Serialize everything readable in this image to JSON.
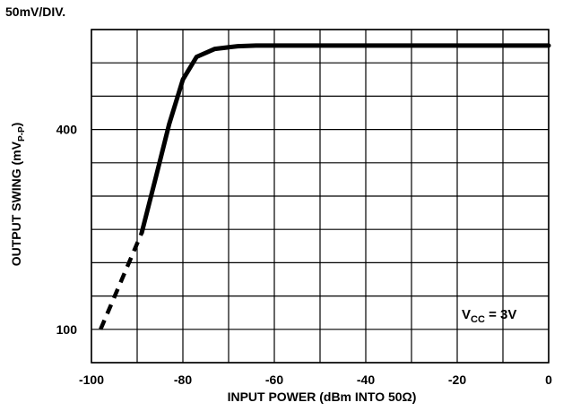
{
  "chart_data": {
    "type": "line",
    "scale_note": "50mV/DIV.",
    "xlabel": "INPUT POWER (dBm INTO 50Ω)",
    "ylabel": {
      "main": "OUTPUT SWING (mV",
      "sub": "P-P",
      "close": ")"
    },
    "xlim": [
      -100,
      0
    ],
    "ylim": [
      50,
      550
    ],
    "x_ticks": [
      -100,
      -80,
      -60,
      -40,
      -20,
      0
    ],
    "y_tick_labels": [
      {
        "value": 100,
        "label": "100"
      },
      {
        "value": 400,
        "label": "400"
      }
    ],
    "grid": true,
    "series": [
      {
        "style": "solid",
        "points": [
          [
            -89,
            245
          ],
          [
            -86,
            326
          ],
          [
            -83,
            408
          ],
          [
            -80,
            475
          ],
          [
            -77,
            509
          ],
          [
            -73,
            521
          ],
          [
            -68,
            525
          ],
          [
            -64,
            526
          ],
          [
            -40,
            526
          ],
          [
            -20,
            526
          ],
          [
            0,
            526
          ]
        ]
      },
      {
        "style": "dashed",
        "points": [
          [
            -98,
            100
          ],
          [
            -89,
            245
          ]
        ]
      }
    ],
    "annotation": {
      "main": "V",
      "sub": "CC",
      "rest": " = 3V",
      "position": "bottom-right"
    }
  }
}
